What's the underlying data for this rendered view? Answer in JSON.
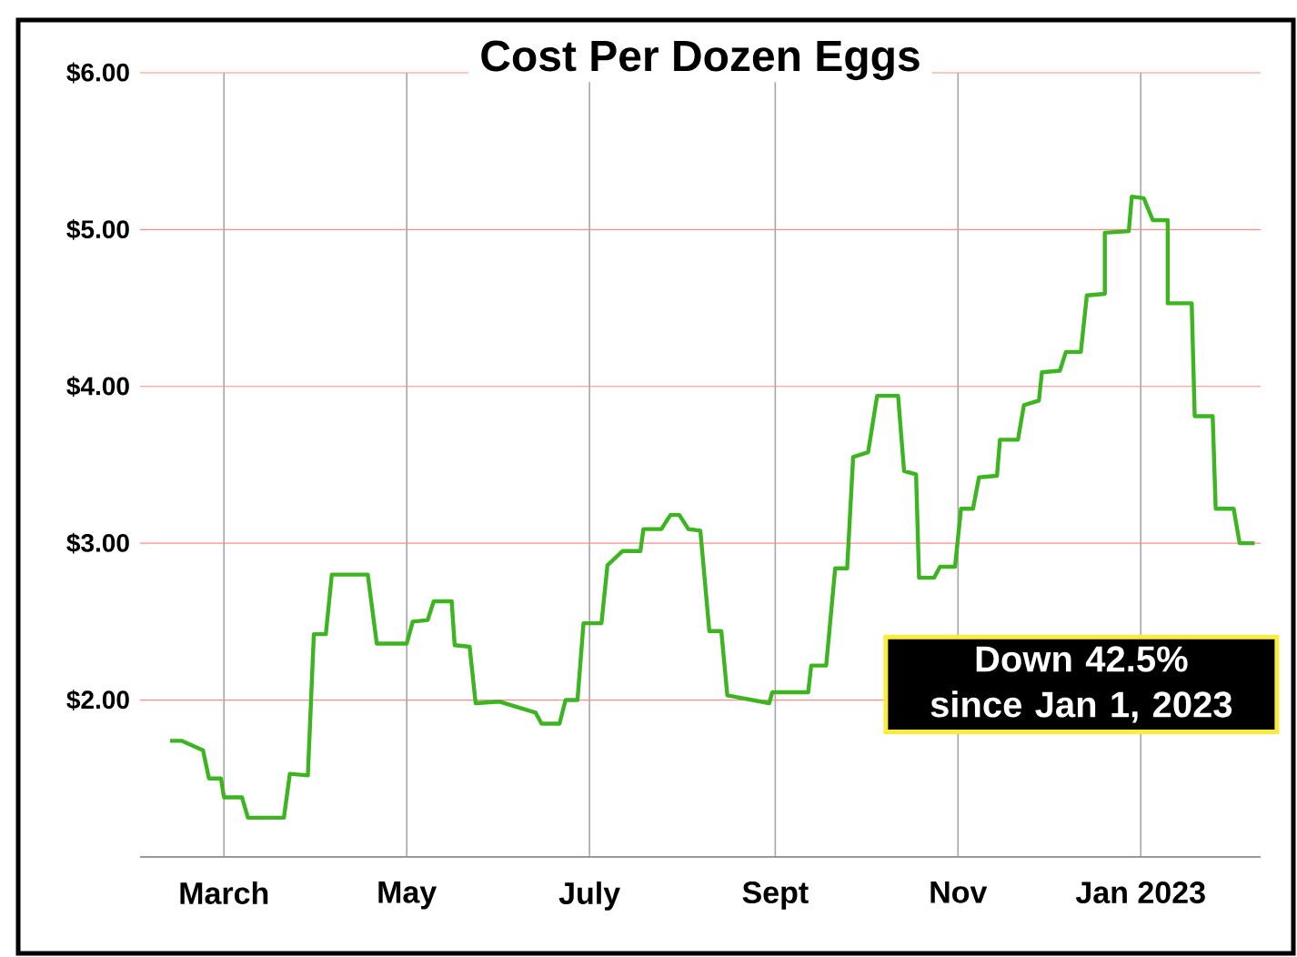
{
  "chart_data": {
    "type": "line",
    "title": "Cost Per Dozen Eggs",
    "x": [
      "2022-02-11",
      "2022-02-15",
      "2022-02-22",
      "2022-02-24",
      "2022-02-28",
      "2022-03-01",
      "2022-03-07",
      "2022-03-09",
      "2022-03-21",
      "2022-03-23",
      "2022-03-29",
      "2022-03-31",
      "2022-04-04",
      "2022-04-06",
      "2022-04-18",
      "2022-04-21",
      "2022-05-01",
      "2022-05-03",
      "2022-05-08",
      "2022-05-10",
      "2022-05-16",
      "2022-05-17",
      "2022-05-22",
      "2022-05-24",
      "2022-06-01",
      "2022-06-13",
      "2022-06-15",
      "2022-06-21",
      "2022-06-23",
      "2022-06-27",
      "2022-06-29",
      "2022-07-05",
      "2022-07-07",
      "2022-07-12",
      "2022-07-18",
      "2022-07-19",
      "2022-07-25",
      "2022-07-28",
      "2022-07-31",
      "2022-08-03",
      "2022-08-07",
      "2022-08-10",
      "2022-08-14",
      "2022-08-16",
      "2022-08-30",
      "2022-08-31",
      "2022-09-12",
      "2022-09-13",
      "2022-09-18",
      "2022-09-21",
      "2022-09-25",
      "2022-09-27",
      "2022-10-02",
      "2022-10-05",
      "2022-10-12",
      "2022-10-14",
      "2022-10-18",
      "2022-10-19",
      "2022-10-24",
      "2022-10-26",
      "2022-10-31",
      "2022-11-02",
      "2022-11-06",
      "2022-11-08",
      "2022-11-14",
      "2022-11-15",
      "2022-11-21",
      "2022-11-23",
      "2022-11-28",
      "2022-11-29",
      "2022-12-05",
      "2022-12-07",
      "2022-12-12",
      "2022-12-14",
      "2022-12-20",
      "2022-12-20",
      "2022-12-28",
      "2022-12-29",
      "2023-01-02",
      "2023-01-05",
      "2023-01-10",
      "2023-01-10",
      "2023-01-18",
      "2023-01-19",
      "2023-01-25",
      "2023-01-26",
      "2023-02-01",
      "2023-02-03",
      "2023-02-08"
    ],
    "series": [
      {
        "color": "#3cb521",
        "values": [
          1.74,
          1.74,
          1.68,
          1.5,
          1.5,
          1.38,
          1.38,
          1.25,
          1.25,
          1.53,
          1.52,
          2.42,
          2.42,
          2.8,
          2.8,
          2.36,
          2.36,
          2.5,
          2.51,
          2.63,
          2.63,
          2.35,
          2.34,
          1.98,
          1.99,
          1.92,
          1.85,
          1.85,
          2.0,
          2.0,
          2.49,
          2.49,
          2.86,
          2.95,
          2.95,
          3.09,
          3.09,
          3.18,
          3.18,
          3.09,
          3.08,
          2.44,
          2.44,
          2.03,
          1.98,
          2.05,
          2.05,
          2.22,
          2.22,
          2.84,
          2.84,
          3.55,
          3.58,
          3.94,
          3.94,
          3.46,
          3.44,
          2.78,
          2.78,
          2.85,
          2.85,
          3.22,
          3.22,
          3.42,
          3.43,
          3.66,
          3.66,
          3.88,
          3.91,
          4.09,
          4.1,
          4.22,
          4.22,
          4.58,
          4.59,
          4.98,
          4.99,
          5.21,
          5.2,
          5.06,
          5.06,
          4.53,
          4.53,
          3.81,
          3.81,
          3.22,
          3.22,
          3.0,
          3.0
        ]
      }
    ],
    "xlim": [
      "2022-02-01",
      "2023-02-10"
    ],
    "xticks": [
      {
        "value": "2022-03-01",
        "label": "March"
      },
      {
        "value": "2022-05-01",
        "label": "May"
      },
      {
        "value": "2022-07-01",
        "label": "July"
      },
      {
        "value": "2022-09-01",
        "label": "Sept"
      },
      {
        "value": "2022-11-01",
        "label": "Nov"
      },
      {
        "value": "2023-01-01",
        "label": "Jan 2023"
      }
    ],
    "ylim": [
      1,
      6
    ],
    "yticks": [
      {
        "value": 2,
        "label": "$2.00"
      },
      {
        "value": 3,
        "label": "$3.00"
      },
      {
        "value": 4,
        "label": "$4.00"
      },
      {
        "value": 5,
        "label": "$5.00"
      },
      {
        "value": 6,
        "label": "$6.00"
      }
    ],
    "grid": true,
    "annotations": [
      "Down 42.5% since Jan 1, 2023"
    ]
  }
}
